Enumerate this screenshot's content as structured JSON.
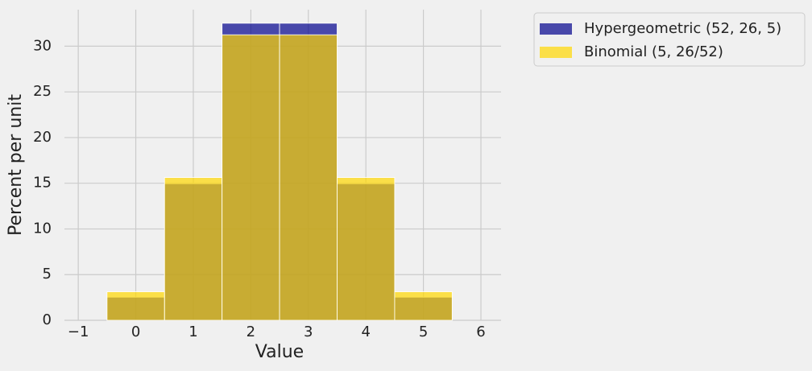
{
  "chart_data": {
    "type": "histogram",
    "xlabel": "Value",
    "ylabel": "Percent per unit",
    "bins": [
      -0.5,
      0.5,
      1.5,
      2.5,
      3.5,
      4.5,
      5.5
    ],
    "series": [
      {
        "name": "Hypergeometric (52, 26, 5)",
        "color": "#00008b",
        "values": [
          2.531,
          14.956,
          32.513,
          32.513,
          14.956,
          2.531
        ]
      },
      {
        "name": "Binomial (5, 26/52)",
        "color": "#ffd700",
        "values": [
          3.125,
          15.625,
          31.25,
          31.25,
          15.625,
          3.125
        ]
      }
    ],
    "xlim": [
      -1.24,
      6.35
    ],
    "xticks": [
      {
        "value": -1,
        "label": "−1"
      },
      0,
      1,
      2,
      3,
      4,
      5,
      6
    ],
    "ylim": [
      0,
      34.0
    ],
    "yticks": [
      0,
      5,
      10,
      15,
      20,
      25,
      30
    ],
    "grid": true,
    "legend": "outside upper right",
    "opacity": 0.7
  }
}
